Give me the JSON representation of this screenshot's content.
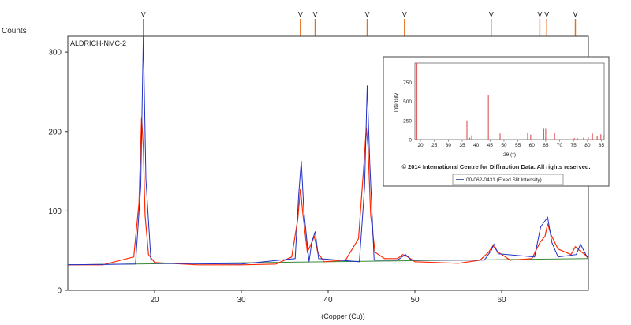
{
  "chart_data": {
    "type": "line",
    "title": "ALDRICH-NMC-2",
    "ylabel": "Counts",
    "xlabel": "(Copper (Cu))",
    "xlim": [
      10,
      70
    ],
    "ylim": [
      0,
      320
    ],
    "xticks": [
      20,
      30,
      40,
      50,
      60
    ],
    "yticks": [
      0,
      100,
      200,
      300
    ],
    "grid": false,
    "series": [
      {
        "name": "",
        "color": "#ff2a00",
        "x": [
          10,
          14,
          17.6,
          18.2,
          18.5,
          18.7,
          18.9,
          19.3,
          20,
          25,
          30,
          34,
          35.8,
          36.5,
          36.8,
          37.1,
          37.6,
          38.1,
          38.4,
          38.8,
          39.5,
          42,
          43.5,
          44.1,
          44.4,
          44.6,
          44.9,
          45.4,
          46.5,
          48,
          48.6,
          49.2,
          50,
          55,
          57.5,
          58.5,
          59,
          59.6,
          61,
          63.5,
          64.4,
          65,
          65.3,
          65.7,
          66.5,
          68,
          68.5,
          69,
          69.6,
          70
        ],
        "y": [
          32,
          32,
          42,
          110,
          218,
          180,
          95,
          45,
          35,
          32,
          32,
          33,
          42,
          90,
          128,
          95,
          48,
          60,
          68,
          48,
          36,
          38,
          65,
          155,
          205,
          180,
          95,
          48,
          40,
          40,
          45,
          42,
          36,
          34,
          38,
          48,
          56,
          48,
          38,
          40,
          60,
          68,
          84,
          70,
          52,
          45,
          55,
          50,
          45,
          40
        ]
      },
      {
        "name": "",
        "color": "#2030c8",
        "x": [
          10,
          17.8,
          18.4,
          18.7,
          19.0,
          19.6,
          30,
          36.2,
          36.6,
          36.9,
          37.2,
          37.8,
          38.1,
          38.5,
          38.9,
          43.6,
          44.2,
          44.5,
          44.8,
          45.3,
          48,
          48.9,
          49.6,
          58,
          58.8,
          59.1,
          59.6,
          63.8,
          64.5,
          64.9,
          65.3,
          65.8,
          66.5,
          68.6,
          69.1,
          69.7,
          70
        ],
        "y": [
          32,
          33,
          130,
          320,
          140,
          34,
          33,
          40,
          120,
          163,
          100,
          36,
          60,
          74,
          40,
          36,
          130,
          258,
          160,
          38,
          38,
          45,
          38,
          38,
          50,
          58,
          46,
          42,
          80,
          86,
          92,
          60,
          42,
          45,
          58,
          45,
          40
        ]
      },
      {
        "name": "",
        "color": "#3a8a3a",
        "x": [
          10,
          70
        ],
        "y": [
          32,
          40
        ]
      }
    ],
    "reference_peaks_2theta": [
      18.7,
      36.8,
      38.5,
      44.5,
      48.8,
      58.8,
      64.4,
      65.2,
      68.5
    ],
    "inset": {
      "type": "bar",
      "ylabel": "Intensity",
      "xlabel": "2θ (°)",
      "xlim": [
        18,
        86
      ],
      "ylim": [
        0,
        1000
      ],
      "xticks": [
        20,
        25,
        30,
        35,
        40,
        45,
        50,
        55,
        60,
        65,
        70,
        75,
        80,
        85
      ],
      "yticks": [
        0,
        250,
        500,
        750
      ],
      "color": "#e06060",
      "x": [
        18.7,
        36.7,
        37.7,
        38.4,
        44.4,
        48.6,
        58.5,
        59.6,
        64.3,
        65.0,
        68.2,
        75.3,
        76.5,
        78.6,
        80.3,
        81.8,
        83.5,
        84.8,
        85.6
      ],
      "y": [
        1000,
        250,
        25,
        55,
        580,
        80,
        90,
        65,
        150,
        150,
        90,
        20,
        15,
        25,
        30,
        80,
        45,
        70,
        60
      ],
      "caption": "© 2014 International Centre for Diffraction Data. All rights reserved.",
      "legend": "00-062-0431 (Fixed Slit Intensity)"
    }
  }
}
